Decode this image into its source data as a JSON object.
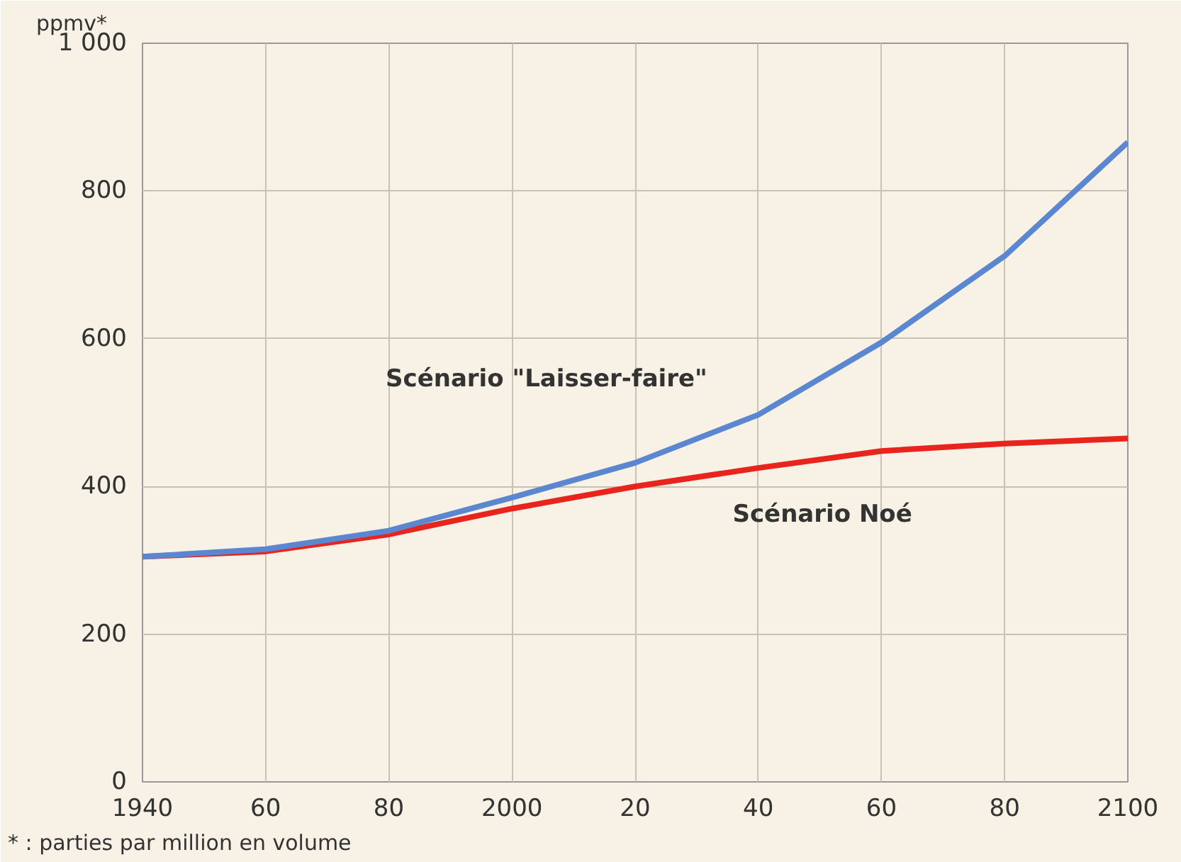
{
  "chart_data": {
    "type": "line",
    "ylabel": "ppmv*",
    "x": [
      1940,
      1960,
      1980,
      2000,
      2020,
      2040,
      2060,
      2080,
      2100
    ],
    "series": [
      {
        "color": "#e8241c",
        "values": [
          305,
          312,
          335,
          370,
          400,
          425,
          448,
          458,
          465
        ]
      },
      {
        "color": "#5b86d0",
        "values": [
          305,
          315,
          340,
          385,
          432,
          497,
          595,
          712,
          866
        ]
      }
    ],
    "xlim": [
      1940,
      2100
    ],
    "ylim": [
      0,
      1000
    ],
    "xticks": [
      1940,
      {
        "value": 1960,
        "label": "60"
      },
      {
        "value": 1980,
        "label": "80"
      },
      2000,
      {
        "value": 2020,
        "label": "20"
      },
      {
        "value": 2040,
        "label": "40"
      },
      {
        "value": 2060,
        "label": "60"
      },
      {
        "value": 2080,
        "label": "80"
      },
      2100
    ],
    "yticks": [
      0,
      200,
      400,
      600,
      800,
      {
        "value": 1000,
        "label": "1 000"
      }
    ],
    "grid": true,
    "marker": "none",
    "line_style": "solid",
    "annotations": [
      "Scénario \"Laisser-faire\"",
      "Scénario Noé",
      "* : parties par million en volume"
    ]
  }
}
